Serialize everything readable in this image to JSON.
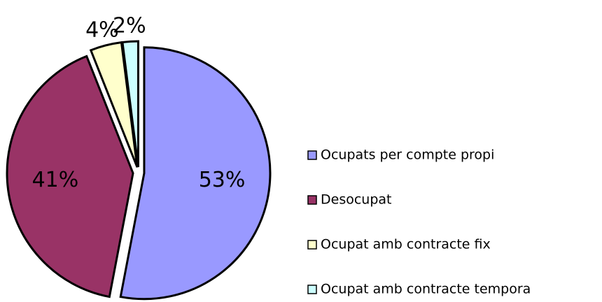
{
  "chart_data": {
    "type": "pie",
    "categories": [
      "Ocupats per compte propi",
      "Desocupat",
      "Ocupat amb contracte fix",
      "Ocupat amb contracte tempora"
    ],
    "values": [
      53,
      41,
      4,
      2
    ],
    "value_labels": [
      "53%",
      "41%",
      "4%",
      "2%"
    ],
    "colors": [
      "#9999ff",
      "#993366",
      "#ffffcc",
      "#ccffff"
    ],
    "legend": "right"
  }
}
